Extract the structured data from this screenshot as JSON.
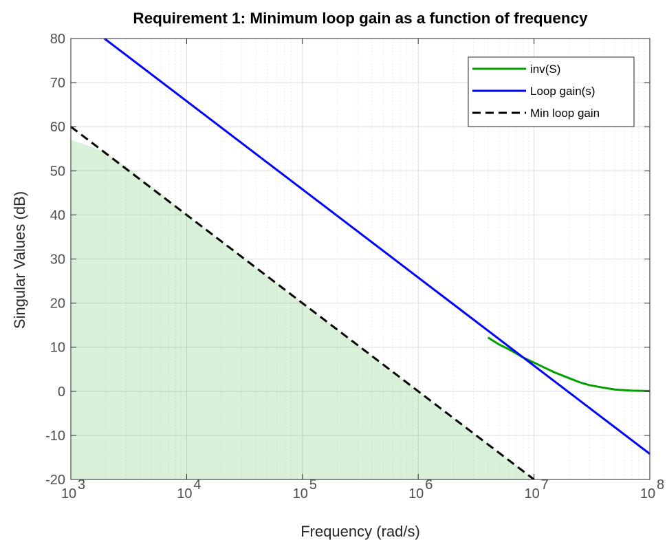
{
  "chart_data": {
    "type": "line",
    "title": "Requirement 1: Minimum loop gain as a function of frequency",
    "xlabel": "Frequency (rad/s)",
    "ylabel": "Singular Values (dB)",
    "xscale": "log",
    "xlim": [
      1000,
      100000000
    ],
    "ylim": [
      -20,
      80
    ],
    "grid": true,
    "legend_position": "top-right",
    "x_ticks": [
      {
        "value": 1000,
        "base": "10",
        "exp": "3"
      },
      {
        "value": 10000,
        "base": "10",
        "exp": "4"
      },
      {
        "value": 100000,
        "base": "10",
        "exp": "5"
      },
      {
        "value": 1000000,
        "base": "10",
        "exp": "6"
      },
      {
        "value": 10000000,
        "base": "10",
        "exp": "7"
      },
      {
        "value": 100000000,
        "base": "10",
        "exp": "8"
      }
    ],
    "y_ticks": [
      "-20",
      "-10",
      "0",
      "10",
      "20",
      "30",
      "40",
      "50",
      "60",
      "70",
      "80"
    ],
    "series": [
      {
        "name": "inv(S)",
        "color": "#00a000",
        "style": "solid",
        "x": [
          4000000,
          5000000,
          6000000,
          7000000,
          8000000,
          10000000,
          12000000,
          15000000,
          20000000,
          25000000,
          30000000,
          40000000,
          50000000,
          70000000,
          100000000
        ],
        "y": [
          12.2,
          10.6,
          9.6,
          8.6,
          7.7,
          6.5,
          5.5,
          4.3,
          3.0,
          2.0,
          1.4,
          0.8,
          0.4,
          0.15,
          0.05
        ]
      },
      {
        "name": "Loop gain(s)",
        "color": "#0000ff",
        "style": "solid",
        "x": [
          1950,
          100000000
        ],
        "y": [
          80,
          -14.2
        ]
      },
      {
        "name": "Min loop gain",
        "color": "#000000",
        "style": "dashed",
        "x": [
          1000,
          10000000
        ],
        "y": [
          60,
          -20
        ]
      }
    ],
    "shaded_region": {
      "color": "#00a000",
      "opacity": 0.15,
      "x": [
        1000,
        1500,
        2000,
        3000,
        5000,
        7000,
        10000,
        100000,
        1000000,
        10000000
      ],
      "y": [
        57,
        55.5,
        54.0,
        51.0,
        46.5,
        43.5,
        40,
        20,
        0,
        -20
      ]
    }
  }
}
